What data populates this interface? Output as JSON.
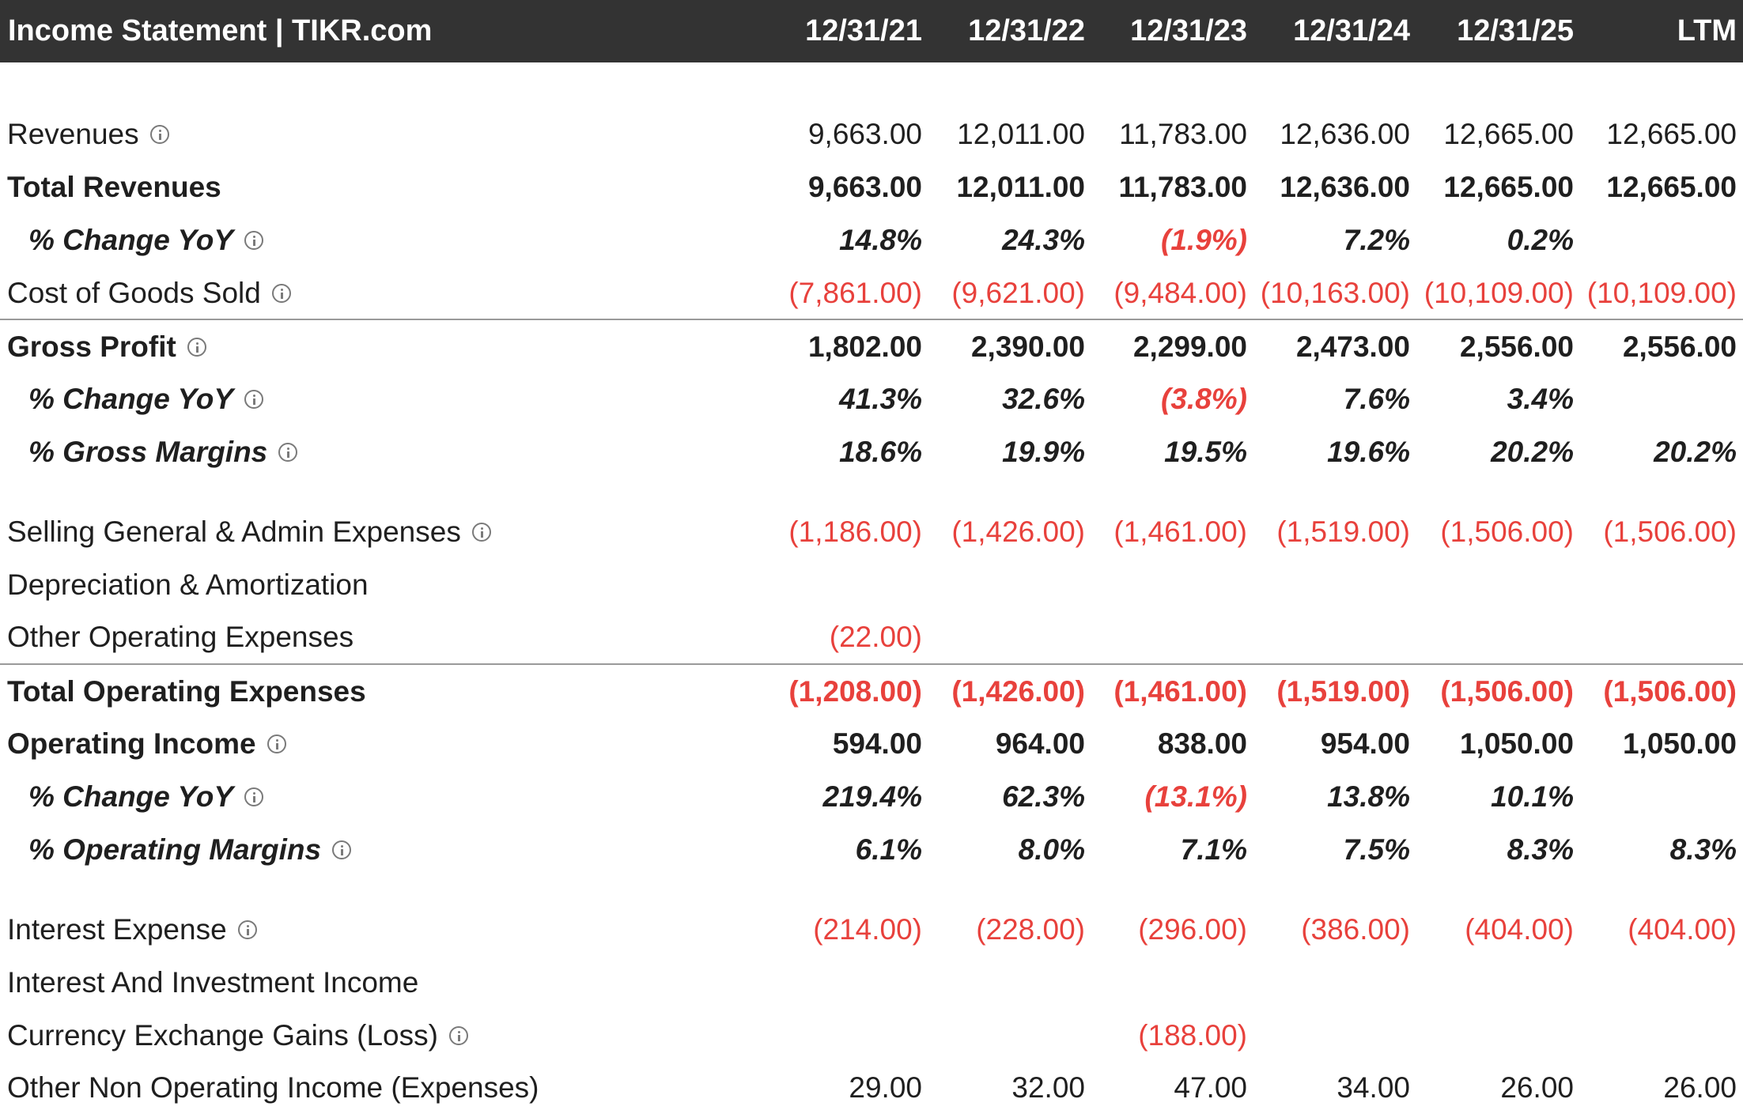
{
  "header": {
    "title": "Income Statement | TIKR.com",
    "columns": [
      "12/31/21",
      "12/31/22",
      "12/31/23",
      "12/31/24",
      "12/31/25",
      "LTM"
    ]
  },
  "rows": [
    {
      "label": "Revenues",
      "info": true,
      "values": [
        "9,663.00",
        "12,011.00",
        "11,783.00",
        "12,636.00",
        "12,665.00",
        "12,665.00"
      ]
    },
    {
      "label": "Total Revenues",
      "info": false,
      "values": [
        "9,663.00",
        "12,011.00",
        "11,783.00",
        "12,636.00",
        "12,665.00",
        "12,665.00"
      ]
    },
    {
      "label": "% Change YoY",
      "info": true,
      "values": [
        "14.8%",
        "24.3%",
        "(1.9%)",
        "7.2%",
        "0.2%",
        ""
      ]
    },
    {
      "label": "Cost of Goods Sold",
      "info": true,
      "values": [
        "(7,861.00)",
        "(9,621.00)",
        "(9,484.00)",
        "(10,163.00)",
        "(10,109.00)",
        "(10,109.00)"
      ]
    },
    {
      "label": "Gross Profit",
      "info": true,
      "values": [
        "1,802.00",
        "2,390.00",
        "2,299.00",
        "2,473.00",
        "2,556.00",
        "2,556.00"
      ]
    },
    {
      "label": "% Change YoY",
      "info": true,
      "values": [
        "41.3%",
        "32.6%",
        "(3.8%)",
        "7.6%",
        "3.4%",
        ""
      ]
    },
    {
      "label": "% Gross Margins",
      "info": true,
      "values": [
        "18.6%",
        "19.9%",
        "19.5%",
        "19.6%",
        "20.2%",
        "20.2%"
      ]
    },
    {
      "label": "Selling General & Admin Expenses",
      "info": true,
      "values": [
        "(1,186.00)",
        "(1,426.00)",
        "(1,461.00)",
        "(1,519.00)",
        "(1,506.00)",
        "(1,506.00)"
      ]
    },
    {
      "label": "Depreciation & Amortization",
      "info": false,
      "values": [
        "",
        "",
        "",
        "",
        "",
        ""
      ]
    },
    {
      "label": "Other Operating Expenses",
      "info": false,
      "values": [
        "(22.00)",
        "",
        "",
        "",
        "",
        ""
      ]
    },
    {
      "label": "Total Operating Expenses",
      "info": false,
      "values": [
        "(1,208.00)",
        "(1,426.00)",
        "(1,461.00)",
        "(1,519.00)",
        "(1,506.00)",
        "(1,506.00)"
      ]
    },
    {
      "label": "Operating Income",
      "info": true,
      "values": [
        "594.00",
        "964.00",
        "838.00",
        "954.00",
        "1,050.00",
        "1,050.00"
      ]
    },
    {
      "label": "% Change YoY",
      "info": true,
      "values": [
        "219.4%",
        "62.3%",
        "(13.1%)",
        "13.8%",
        "10.1%",
        ""
      ]
    },
    {
      "label": "% Operating Margins",
      "info": true,
      "values": [
        "6.1%",
        "8.0%",
        "7.1%",
        "7.5%",
        "8.3%",
        "8.3%"
      ]
    },
    {
      "label": "Interest Expense",
      "info": true,
      "values": [
        "(214.00)",
        "(228.00)",
        "(296.00)",
        "(386.00)",
        "(404.00)",
        "(404.00)"
      ]
    },
    {
      "label": "Interest And Investment Income",
      "info": false,
      "values": [
        "",
        "",
        "",
        "",
        "",
        ""
      ]
    },
    {
      "label": "Currency Exchange Gains (Loss)",
      "info": true,
      "values": [
        "",
        "",
        "(188.00)",
        "",
        "",
        ""
      ]
    },
    {
      "label": "Other Non Operating Income (Expenses)",
      "info": false,
      "values": [
        "29.00",
        "32.00",
        "47.00",
        "34.00",
        "26.00",
        "26.00"
      ]
    }
  ],
  "colors": {
    "header_bg": "#333333",
    "negative": "#e8413c",
    "text": "#1f1f1f"
  }
}
